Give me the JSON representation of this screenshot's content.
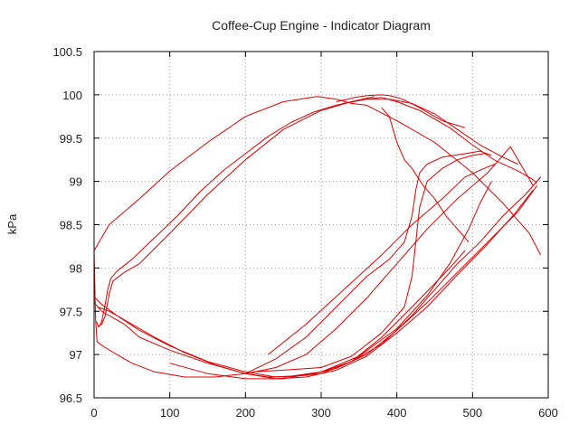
{
  "chart_data": {
    "type": "line",
    "title": "Coffee-Cup Engine - Indicator Diagram",
    "xlabel": "",
    "ylabel": "kPa",
    "xlim": [
      0,
      600
    ],
    "ylim": [
      96.5,
      100.5
    ],
    "x_ticks": [
      "0",
      "100",
      "200",
      "300",
      "400",
      "500",
      "600"
    ],
    "y_ticks": [
      "96.5",
      "97",
      "97.5",
      "98",
      "98.5",
      "99",
      "99.5",
      "100",
      "100.5"
    ],
    "grid": true,
    "legend": "none",
    "line_color": "#dd0000",
    "series": [
      {
        "x": [
          0,
          1,
          2,
          4,
          8,
          15,
          30,
          50,
          80,
          120,
          160,
          200,
          240,
          280,
          320,
          360,
          400,
          440,
          480,
          520,
          550,
          580,
          590
        ],
        "y": [
          98.2,
          97.8,
          97.4,
          97.15,
          97.12,
          97.08,
          97.0,
          96.9,
          96.8,
          96.74,
          96.74,
          96.78,
          96.85,
          97.0,
          97.3,
          97.65,
          98.05,
          98.45,
          98.8,
          99.1,
          99.4,
          98.95,
          99.05
        ]
      },
      {
        "x": [
          0,
          20,
          60,
          100,
          150,
          200,
          250,
          295,
          320,
          340,
          360,
          400,
          450,
          500,
          540,
          575,
          590
        ],
        "y": [
          98.2,
          98.5,
          98.8,
          99.12,
          99.45,
          99.75,
          99.92,
          99.98,
          99.95,
          99.9,
          99.88,
          99.7,
          99.45,
          99.1,
          98.75,
          98.4,
          98.15
        ]
      },
      {
        "x": [
          360,
          380,
          400,
          430,
          470,
          500,
          530,
          560,
          580,
          585
        ],
        "y": [
          99.95,
          99.97,
          99.92,
          99.82,
          99.62,
          99.42,
          99.24,
          99.12,
          99.02,
          98.98
        ]
      },
      {
        "x": [
          320,
          335,
          345,
          360,
          380,
          390,
          400,
          410,
          430,
          460,
          490
        ],
        "y": [
          99.92,
          99.95,
          99.97,
          99.99,
          100.0,
          99.99,
          99.97,
          99.94,
          99.85,
          99.7,
          99.62
        ]
      },
      {
        "x": [
          380,
          390,
          400,
          410,
          420,
          435,
          450,
          465,
          480,
          495
        ],
        "y": [
          99.85,
          99.75,
          99.45,
          99.25,
          99.15,
          98.95,
          98.8,
          98.6,
          98.45,
          98.3
        ]
      },
      {
        "x": [
          5,
          10,
          15,
          20,
          25,
          40,
          60,
          100,
          150,
          200,
          250,
          300,
          340,
          370
        ],
        "y": [
          97.32,
          97.35,
          97.45,
          97.7,
          97.85,
          97.95,
          98.05,
          98.4,
          98.85,
          99.25,
          99.6,
          99.82,
          99.92,
          99.98
        ]
      },
      {
        "x": [
          3,
          6,
          10,
          14,
          18,
          22,
          30,
          50,
          80,
          110,
          140,
          170,
          200,
          230,
          260,
          290,
          320,
          345
        ],
        "y": [
          97.38,
          97.32,
          97.38,
          97.55,
          97.75,
          97.88,
          97.96,
          98.1,
          98.35,
          98.6,
          98.88,
          99.12,
          99.32,
          99.52,
          99.68,
          99.8,
          99.88,
          99.93
        ]
      },
      {
        "x": [
          0,
          5,
          10,
          20,
          40,
          60,
          100,
          150,
          200,
          230,
          260,
          300,
          340,
          380,
          420,
          450,
          480,
          510,
          540,
          570,
          590
        ],
        "y": [
          97.6,
          97.55,
          97.5,
          97.45,
          97.35,
          97.2,
          97.05,
          96.9,
          96.78,
          96.74,
          96.75,
          96.8,
          96.92,
          97.12,
          97.45,
          97.75,
          98.05,
          98.3,
          98.6,
          98.85,
          99.05
        ]
      },
      {
        "x": [
          2,
          10,
          30,
          60,
          100,
          150,
          200,
          240,
          280,
          320,
          360,
          400,
          440,
          480,
          520,
          560,
          585
        ],
        "y": [
          97.65,
          97.58,
          97.45,
          97.28,
          97.1,
          96.92,
          96.8,
          96.74,
          96.76,
          96.84,
          97.0,
          97.28,
          97.6,
          97.95,
          98.3,
          98.65,
          98.95
        ]
      },
      {
        "x": [
          5,
          20,
          40,
          80,
          120,
          160,
          200,
          240,
          280,
          320,
          360,
          400,
          440,
          480,
          520,
          555,
          580
        ],
        "y": [
          97.55,
          97.5,
          97.4,
          97.2,
          97.02,
          96.88,
          96.78,
          96.72,
          96.74,
          96.82,
          96.98,
          97.25,
          97.55,
          97.92,
          98.28,
          98.62,
          98.9
        ]
      },
      {
        "x": [
          200,
          240,
          280,
          320,
          360,
          390,
          410,
          420,
          425,
          430,
          440,
          460,
          490,
          510,
          525
        ],
        "y": [
          96.78,
          96.95,
          97.2,
          97.55,
          97.9,
          98.1,
          98.3,
          98.6,
          98.9,
          99.1,
          99.2,
          99.28,
          99.32,
          99.35,
          99.3
        ]
      },
      {
        "x": [
          210,
          250,
          300,
          340,
          380,
          410,
          420,
          425,
          430,
          440,
          460,
          480,
          500,
          515
        ],
        "y": [
          96.8,
          96.82,
          96.85,
          96.98,
          97.25,
          97.55,
          97.9,
          98.3,
          98.7,
          99.0,
          99.15,
          99.25,
          99.3,
          99.32
        ]
      },
      {
        "x": [
          250,
          300,
          340,
          380,
          420,
          450,
          470,
          490
        ],
        "y": [
          96.74,
          96.78,
          96.92,
          97.2,
          97.55,
          97.82,
          98.0,
          98.2
        ]
      },
      {
        "x": [
          100,
          150,
          200,
          250,
          300,
          350,
          400,
          440,
          470,
          495,
          510,
          525
        ],
        "y": [
          96.9,
          96.78,
          96.72,
          96.72,
          96.8,
          96.98,
          97.3,
          97.68,
          98.05,
          98.45,
          98.75,
          99.0
        ]
      },
      {
        "x": [
          230,
          280,
          330,
          380,
          420,
          460,
          490,
          515,
          530
        ],
        "y": [
          97.0,
          97.35,
          97.75,
          98.15,
          98.5,
          98.8,
          99.05,
          99.15,
          99.2
        ]
      },
      {
        "x": [
          300,
          330,
          360,
          390,
          420,
          450,
          480,
          510,
          540,
          560
        ],
        "y": [
          99.82,
          99.9,
          99.95,
          99.95,
          99.9,
          99.78,
          99.6,
          99.42,
          99.28,
          99.2
        ]
      }
    ]
  }
}
